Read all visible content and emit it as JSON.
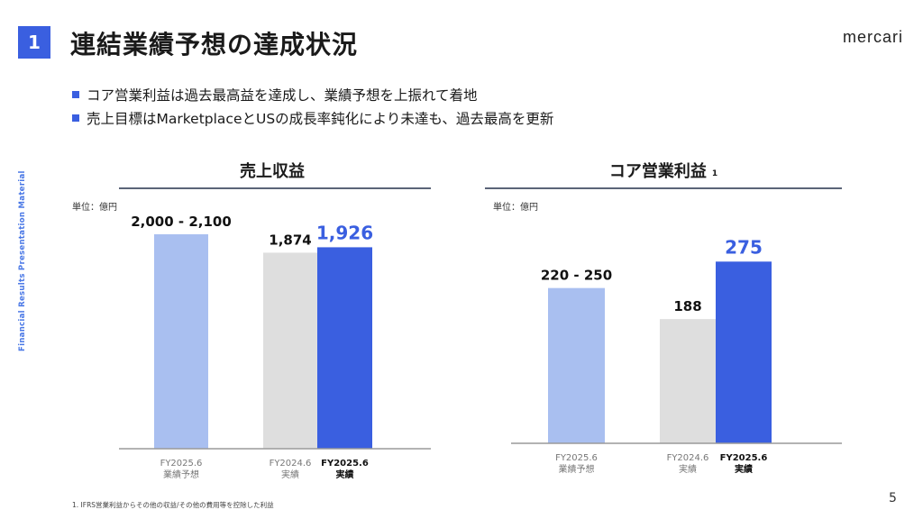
{
  "header": {
    "section_number": "1",
    "title": "連結業績予想の達成状況",
    "logo_text": "mercari"
  },
  "bullets": [
    "コア営業利益は過去最高益を達成し、業績予想を上振れて着地",
    "売上目標はMarketplaceとUSの成長率鈍化により未達も、過去最高を更新"
  ],
  "side_label": "Financial Results Presentation Material",
  "colors": {
    "accent": "#3a5fe0",
    "forecast": "#a9bff0",
    "prior_year": "#dedede",
    "actual": "#3a5fe0",
    "axis": "#5b6478"
  },
  "chart_data": [
    {
      "type": "bar",
      "title": "売上収益",
      "title_note": "",
      "unit": "単位：億円",
      "ylim": [
        0,
        2300
      ],
      "bars": [
        {
          "category_line1": "FY2025.6",
          "category_line2": "業績予想",
          "value": 2050,
          "range": [
            2000,
            2100
          ],
          "label": "2,000 - 2,100",
          "kind": "forecast",
          "highlight": false
        },
        {
          "category_line1": "FY2024.6",
          "category_line2": "実績",
          "value": 1874,
          "label": "1,874",
          "kind": "prior_year",
          "highlight": false
        },
        {
          "category_line1": "FY2025.6",
          "category_line2": "実績",
          "value": 1926,
          "label": "1,926",
          "kind": "actual",
          "highlight": true
        }
      ]
    },
    {
      "type": "bar",
      "title": "コア営業利益",
      "title_note": "1",
      "unit": "単位：億円",
      "ylim": [
        0,
        300
      ],
      "bars": [
        {
          "category_line1": "FY2025.6",
          "category_line2": "業績予想",
          "value": 235,
          "range": [
            220,
            250
          ],
          "label": "220 - 250",
          "kind": "forecast",
          "highlight": false
        },
        {
          "category_line1": "FY2024.6",
          "category_line2": "実績",
          "value": 188,
          "label": "188",
          "kind": "prior_year",
          "highlight": false
        },
        {
          "category_line1": "FY2025.6",
          "category_line2": "実績",
          "value": 275,
          "label": "275",
          "kind": "actual",
          "highlight": true
        }
      ]
    }
  ],
  "footnote": "1. IFRS営業利益からその他の収益/その他の費用等を控除した利益",
  "page_number": "5"
}
